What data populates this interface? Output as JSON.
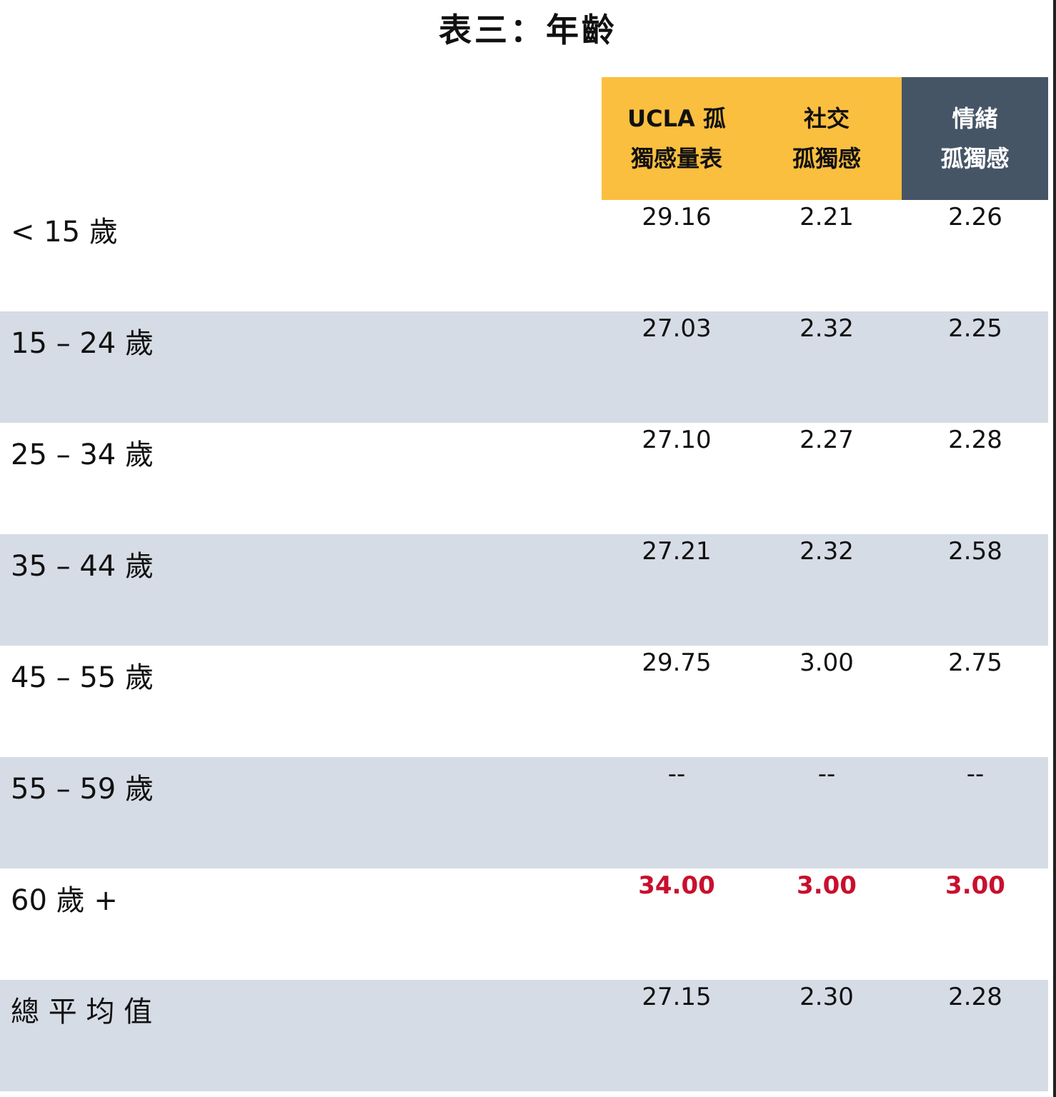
{
  "title": "表三：年齡",
  "headers": [
    "UCLA 孤\n獨感量表",
    "社交\n孤獨感",
    "情緒\n孤獨感"
  ],
  "colors": {
    "header_yellow": "#FBBF3F",
    "header_dark": "#465566",
    "row_alt": "#D6DCE5",
    "highlight": "#C8102E"
  },
  "rows": [
    {
      "label": "< 15 歲",
      "values": [
        "29.16",
        "2.21",
        "2.26"
      ]
    },
    {
      "label": "15 – 24 歲",
      "values": [
        "27.03",
        "2.32",
        "2.25"
      ]
    },
    {
      "label": "25 – 34 歲",
      "values": [
        "27.10",
        "2.27",
        "2.28"
      ]
    },
    {
      "label": "35 – 44 歲",
      "values": [
        "27.21",
        "2.32",
        "2.58"
      ]
    },
    {
      "label": "45 – 55 歲",
      "values": [
        "29.75",
        "3.00",
        "2.75"
      ]
    },
    {
      "label": "55 – 59 歲",
      "values": [
        "--",
        "--",
        "--"
      ]
    },
    {
      "label": "60 歲 +",
      "values": [
        "34.00",
        "3.00",
        "3.00"
      ],
      "highlighted": true
    },
    {
      "label": "總 平 均 值",
      "values": [
        "27.15",
        "2.30",
        "2.28"
      ]
    }
  ]
}
